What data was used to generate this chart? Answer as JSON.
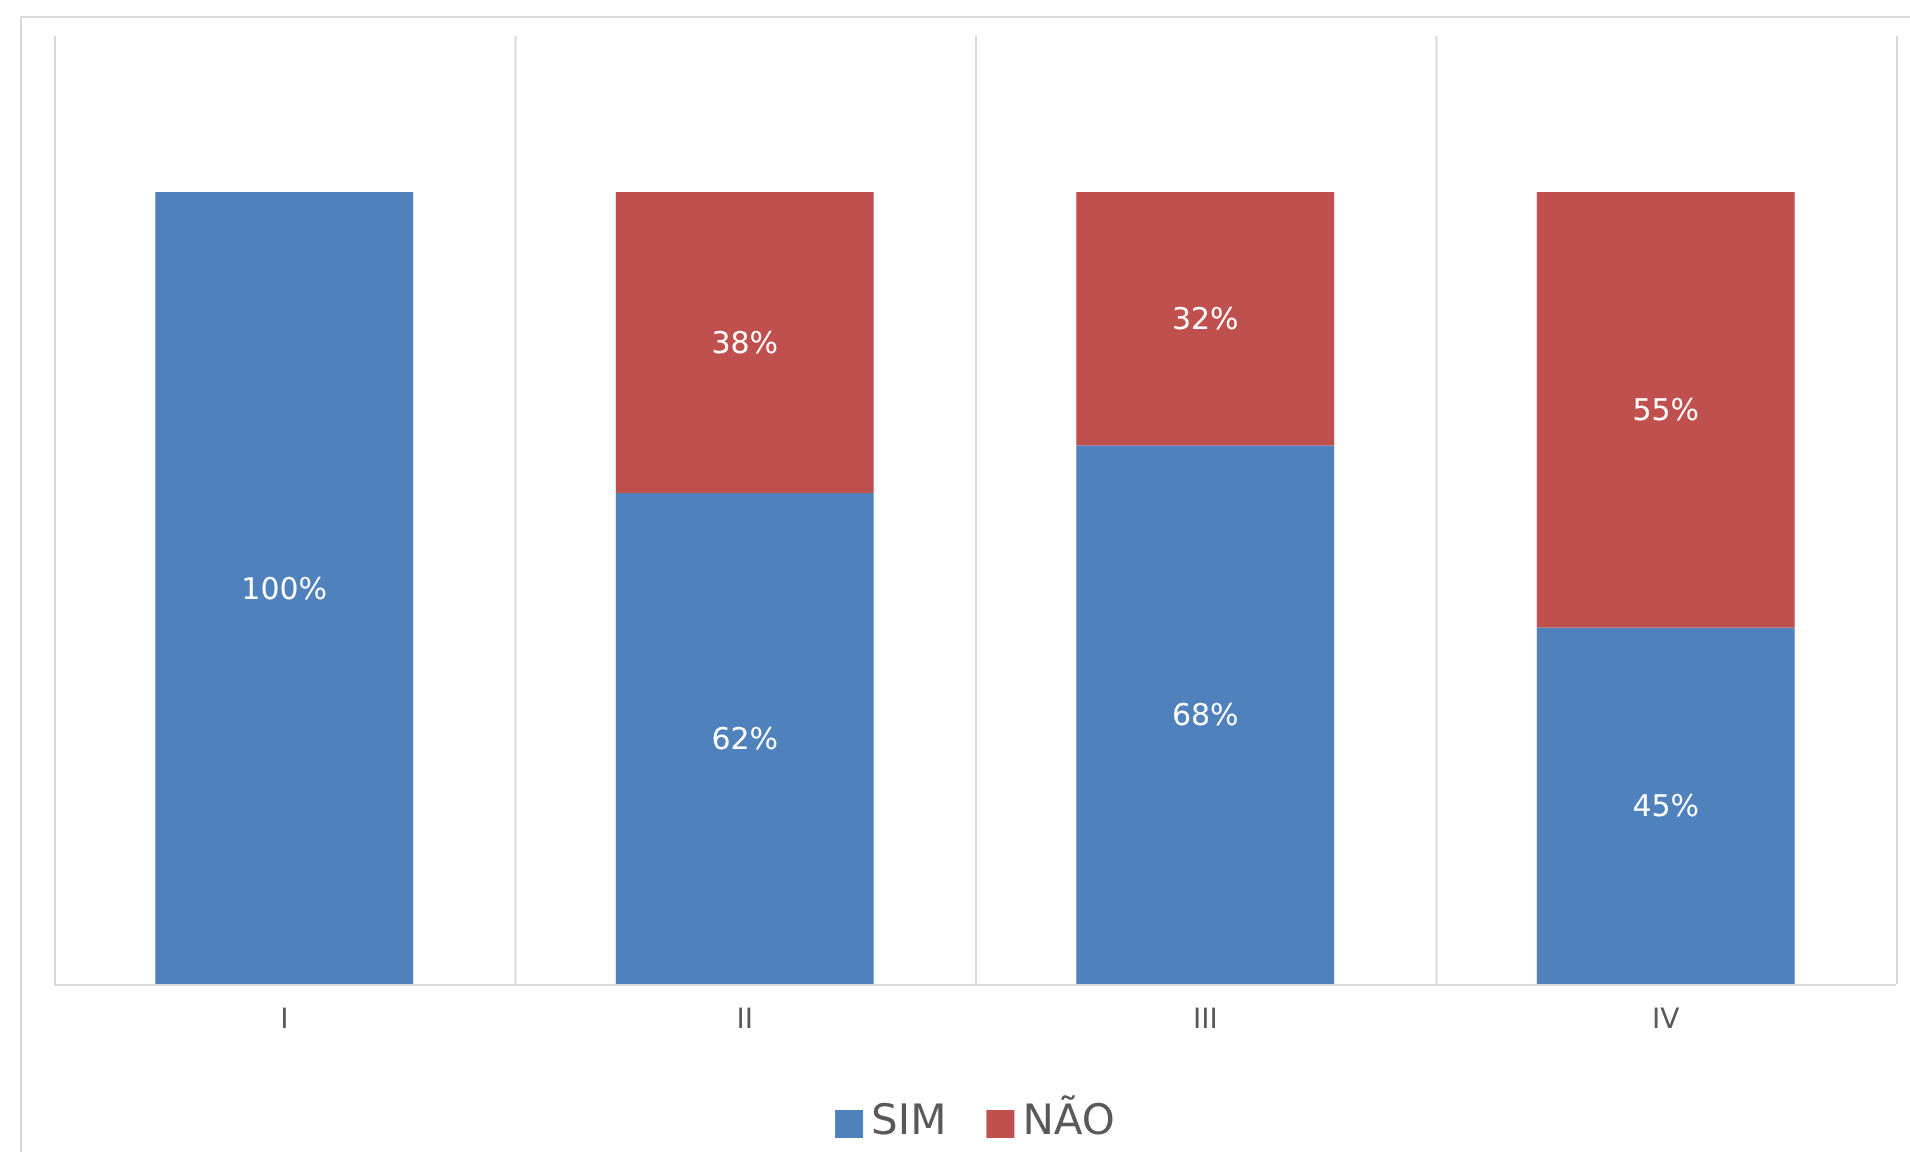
{
  "chart_data": {
    "type": "bar",
    "stacked": true,
    "categories": [
      "I",
      "II",
      "III",
      "IV"
    ],
    "series": [
      {
        "name": "SIM",
        "color": "#4f81bd",
        "values": [
          100,
          62,
          68,
          45
        ],
        "value_labels": [
          "100%",
          "62%",
          "68%",
          "45%"
        ]
      },
      {
        "name": "NÃO",
        "color": "#c0504d",
        "values": [
          0,
          38,
          32,
          55
        ],
        "value_labels": [
          null,
          "38%",
          "32%",
          "55%"
        ]
      }
    ],
    "grid": "x",
    "legend": "bottom"
  }
}
